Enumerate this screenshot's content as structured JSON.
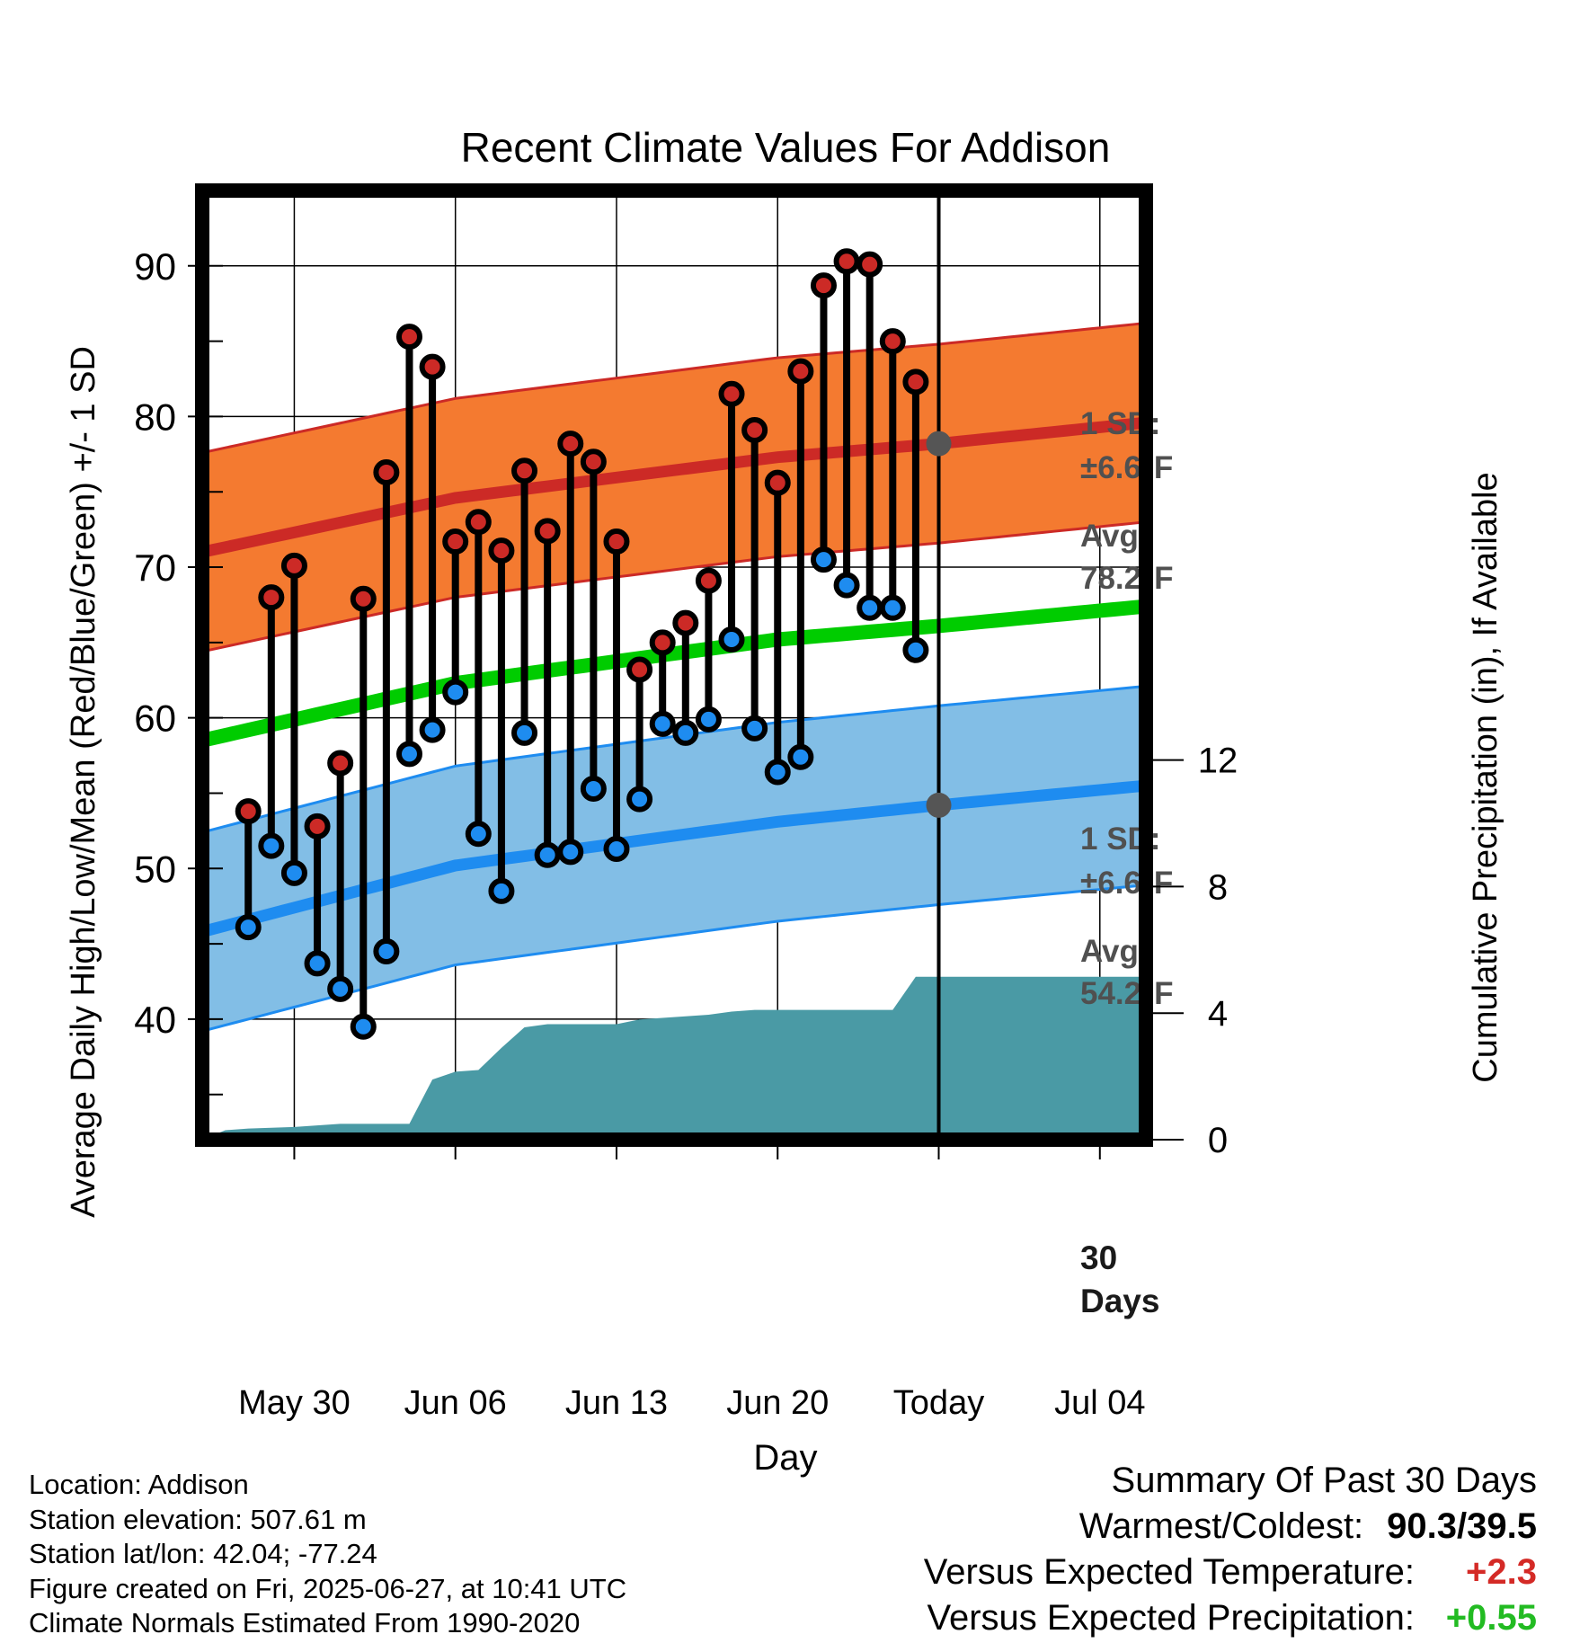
{
  "chart_data": {
    "type": "line",
    "title": "Recent Climate Values For Addison",
    "xlabel": "Day",
    "ylabel": "Average Daily High/Low/Mean (Red/Blue/Green) +/- 1 SD",
    "y2label": "Cumulative Precipitation (in), If Available",
    "ylim": [
      32,
      95
    ],
    "y2lim": [
      0,
      30
    ],
    "xlim": [
      "2025-05-26",
      "2025-07-06"
    ],
    "x_ticks": [
      "May 30",
      "Jun 06",
      "Jun 13",
      "Jun 20",
      "Today",
      "Jul 04"
    ],
    "x_tick_dates": [
      "2025-05-30",
      "2025-06-06",
      "2025-06-13",
      "2025-06-20",
      "2025-06-27",
      "2025-07-04"
    ],
    "y_ticks": [
      40,
      50,
      60,
      70,
      80,
      90
    ],
    "y2_ticks": [
      0,
      4,
      8,
      12
    ],
    "grid": true,
    "today": "2025-06-27",
    "daily": {
      "dates": [
        "2025-05-28",
        "2025-05-29",
        "2025-05-30",
        "2025-05-31",
        "2025-06-01",
        "2025-06-02",
        "2025-06-03",
        "2025-06-04",
        "2025-06-05",
        "2025-06-06",
        "2025-06-07",
        "2025-06-08",
        "2025-06-09",
        "2025-06-10",
        "2025-06-11",
        "2025-06-12",
        "2025-06-13",
        "2025-06-14",
        "2025-06-15",
        "2025-06-16",
        "2025-06-17",
        "2025-06-18",
        "2025-06-19",
        "2025-06-20",
        "2025-06-21",
        "2025-06-22",
        "2025-06-23",
        "2025-06-24",
        "2025-06-25",
        "2025-06-26"
      ],
      "highs": [
        53.8,
        68.0,
        70.1,
        52.8,
        57.0,
        67.9,
        76.3,
        85.3,
        83.3,
        71.7,
        73.0,
        71.1,
        76.4,
        72.4,
        78.2,
        77.0,
        71.7,
        63.2,
        65.0,
        66.3,
        69.1,
        81.5,
        79.1,
        75.6,
        83.0,
        88.7,
        90.3,
        90.1,
        85.0,
        82.3
      ],
      "lows": [
        46.1,
        51.5,
        49.7,
        43.7,
        42.0,
        39.5,
        44.5,
        57.6,
        59.2,
        61.7,
        52.3,
        48.5,
        59.0,
        50.9,
        51.1,
        55.3,
        51.3,
        54.6,
        59.6,
        59.0,
        59.9,
        65.2,
        59.3,
        56.4,
        57.4,
        70.5,
        68.8,
        67.3,
        67.3,
        64.5
      ]
    },
    "normals": {
      "dates": [
        "2025-05-26",
        "2025-06-06",
        "2025-06-20",
        "2025-06-27",
        "2025-07-06"
      ],
      "mean": [
        58.5,
        62.3,
        65.2,
        66.1,
        67.4
      ],
      "avg_high": [
        71.0,
        74.6,
        77.3,
        78.2,
        79.6
      ],
      "avg_low": [
        45.8,
        50.2,
        53.1,
        54.2,
        55.5
      ],
      "sd": 6.6
    },
    "precipitation": {
      "dates": [
        "2025-05-26",
        "2025-05-27",
        "2025-05-28",
        "2025-05-30",
        "2025-06-01",
        "2025-06-04",
        "2025-06-05",
        "2025-06-06",
        "2025-06-07",
        "2025-06-08",
        "2025-06-09",
        "2025-06-10",
        "2025-06-13",
        "2025-06-14",
        "2025-06-15",
        "2025-06-16",
        "2025-06-17",
        "2025-06-18",
        "2025-06-19",
        "2025-06-25",
        "2025-06-26",
        "2025-07-06"
      ],
      "values": [
        0.0,
        0.3,
        0.35,
        0.4,
        0.5,
        0.5,
        1.9,
        2.15,
        2.2,
        2.9,
        3.55,
        3.65,
        3.65,
        3.8,
        3.85,
        3.9,
        3.95,
        4.05,
        4.1,
        4.1,
        5.15,
        5.15
      ]
    },
    "annotations": {
      "high_sd": "1 SD:",
      "high_sd_value": "±6.6°F",
      "high_avg": "Avg:",
      "high_avg_value": "78.2°F",
      "low_sd": "1 SD:",
      "low_sd_value": "±6.6°F",
      "low_avg": "Avg:",
      "low_avg_value": "54.2°F",
      "period_line1": "30",
      "period_line2": "Days"
    },
    "colors": {
      "high_band": "#f47a30",
      "high_line": "#cc2a26",
      "low_band": "#82bee6",
      "low_line": "#1e8cf0",
      "mean_line": "#00cc00",
      "precip": "#4a9aa5",
      "high_dot": "#cc2a26",
      "low_dot": "#1e8cf0",
      "avg_dot": "#555555",
      "annotation": "#505050"
    }
  },
  "footer": {
    "location": "Location: Addison",
    "elevation": "Station elevation: 507.61 m",
    "latlon": "Station lat/lon: 42.04; -77.24",
    "created": "Figure created on Fri, 2025-06-27, at 10:41 UTC",
    "normals": "Climate Normals Estimated From 1990-2020"
  },
  "summary": {
    "title": "Summary Of Past 30 Days",
    "warm_cold_label": "Warmest/Coldest:",
    "warm_cold_value": "90.3/39.5",
    "temp_label": "Versus Expected Temperature:",
    "temp_value": "+2.3",
    "temp_color": "#d42a26",
    "precip_label": "Versus Expected Precipitation:",
    "precip_value": "+0.55",
    "precip_color": "#22bb22"
  }
}
